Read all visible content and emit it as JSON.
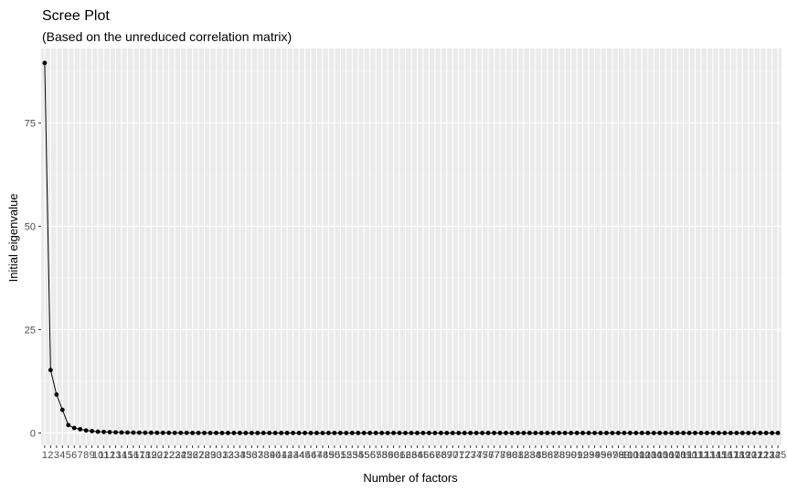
{
  "chart_data": {
    "type": "line",
    "title": "Scree Plot",
    "subtitle": "(Based on the unreduced correlation matrix)",
    "xlabel": "Number of factors",
    "ylabel": "Initial eigenvalue",
    "x_range": [
      1,
      125
    ],
    "ylim": [
      -3,
      93
    ],
    "y_ticks": [
      0,
      25,
      50,
      75
    ],
    "grid": true,
    "markers": true,
    "series": [
      {
        "values": [
          89.5,
          15.2,
          9.3,
          5.6,
          1.9,
          1.2,
          0.9,
          0.6,
          0.45,
          0.3,
          0.25,
          0.2,
          0.15,
          0.12,
          0.1,
          0.08,
          0.07,
          0.06,
          0.05,
          0.04,
          0.03,
          0.03,
          0.02,
          0.02,
          0.02,
          0.01,
          0.01,
          0.01,
          0.01,
          0.01,
          0,
          0,
          0,
          0,
          0,
          0,
          0,
          0,
          0,
          0,
          0,
          0,
          0,
          0,
          0,
          0,
          0,
          0,
          0,
          0,
          0,
          0,
          0,
          0,
          0,
          0,
          0,
          0,
          0,
          0,
          0,
          0,
          0,
          0,
          0,
          0,
          0,
          0,
          0,
          0,
          0,
          0,
          0,
          0,
          0,
          0,
          0,
          0,
          0,
          0,
          0,
          0,
          0,
          0,
          0,
          0,
          0,
          0,
          0,
          0,
          0,
          0,
          0,
          0,
          0,
          0,
          0,
          0,
          0,
          0,
          0,
          0,
          0,
          0,
          0,
          0,
          0,
          0,
          0,
          0,
          0,
          0,
          0,
          0,
          0,
          0,
          0,
          0,
          0,
          0,
          0,
          0,
          0,
          0,
          0
        ]
      }
    ],
    "colors": {
      "panel": "#ebebeb",
      "grid_major": "#ffffff",
      "line": "#000000",
      "point": "#000000"
    }
  }
}
